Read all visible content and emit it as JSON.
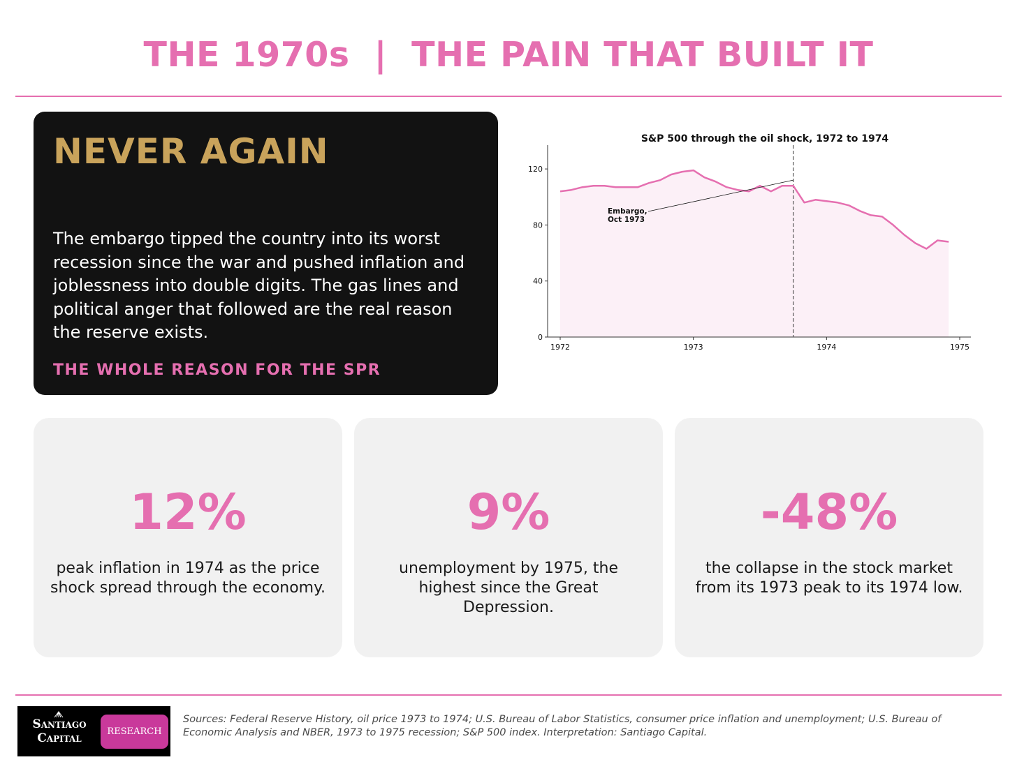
{
  "header": {
    "title": "THE 1970s  |  THE PAIN THAT BUILT IT"
  },
  "hero": {
    "heading": "NEVER AGAIN",
    "body": "The embargo tipped the country into its worst recession since the war and pushed inflation and joblessness into double digits. The gas lines and political anger that followed are the real reason the reserve exists.",
    "tagline": "THE WHOLE REASON FOR THE SPR"
  },
  "chart_data": {
    "type": "area",
    "title": "S&P 500 through the oil shock, 1972 to 1974",
    "xlabel": "",
    "ylabel": "",
    "xlim": [
      1972,
      1975
    ],
    "ylim": [
      0,
      135
    ],
    "xticks": [
      "1972",
      "1973",
      "1974",
      "1975"
    ],
    "yticks": [
      "0",
      "40",
      "80",
      "120"
    ],
    "grid": false,
    "series": [
      {
        "x": [
          1972.0,
          1972.083,
          1972.167,
          1972.25,
          1972.333,
          1972.417,
          1972.5,
          1972.583,
          1972.667,
          1972.75,
          1972.833,
          1972.917,
          1973.0,
          1973.083,
          1973.167,
          1973.25,
          1973.333,
          1973.417,
          1973.5,
          1973.583,
          1973.667,
          1973.75,
          1973.833,
          1973.917,
          1974.0,
          1974.083,
          1974.167,
          1974.25,
          1974.333,
          1974.417,
          1974.5,
          1974.583,
          1974.667,
          1974.75,
          1974.833,
          1974.917
        ],
        "values": [
          104,
          105,
          107,
          108,
          108,
          107,
          107,
          107,
          110,
          112,
          116,
          118,
          119,
          114,
          111,
          107,
          105,
          104,
          108,
          104,
          108,
          108,
          96,
          98,
          97,
          96,
          94,
          90,
          87,
          86,
          80,
          73,
          67,
          63,
          69,
          68
        ]
      }
    ],
    "annotations": [
      {
        "text": "Embargo,\nOct 1973",
        "x": 1973.75,
        "y": 112
      }
    ],
    "vline": {
      "x": 1973.75,
      "style": "dashed"
    }
  },
  "stats": [
    {
      "value": "12%",
      "text": "peak inflation in 1974 as the price shock spread through the economy."
    },
    {
      "value": "9%",
      "text": "unemployment by 1975, the highest since the Great Depression."
    },
    {
      "value": "-48%",
      "text": "the collapse in the stock market from its 1973 peak to its 1974 low."
    }
  ],
  "footer": {
    "logo_name": "Santiago\nCapital",
    "logo_badge": "RESEARCH",
    "sources": "Sources: Federal Reserve History, oil price 1973 to 1974; U.S. Bureau of Labor Statistics, consumer price inflation and unemployment; U.S. Bureau of Economic Analysis and NBER, 1973 to 1975 recession; S&P 500 index. Interpretation: Santiago Capital."
  },
  "colors": {
    "accent": "#e56fb0",
    "gold": "#c9a35b",
    "panel": "#121212",
    "card": "#f1f1f1",
    "fill": "#fcf0f7"
  }
}
